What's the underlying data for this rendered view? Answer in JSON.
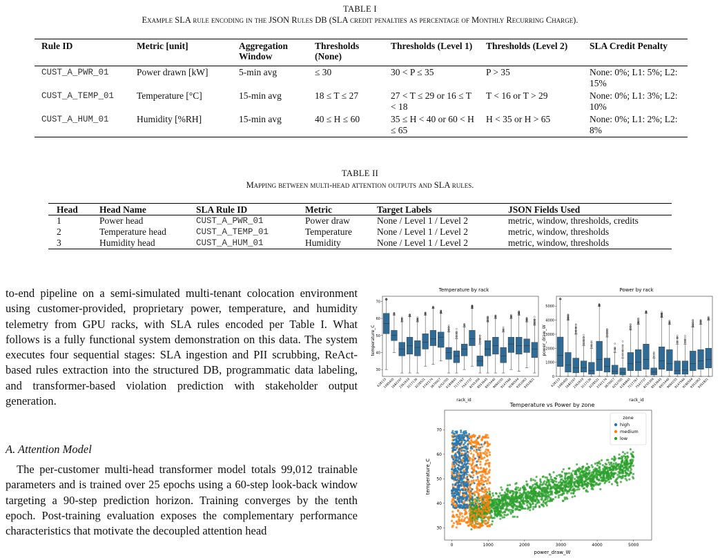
{
  "table1": {
    "label": "TABLE I",
    "caption": "Example SLA rule encoding in the JSON Rules DB (SLA credit penalties as percentage of Monthly Recurring Charge).",
    "headers": [
      "Rule ID",
      "Metric [unit]",
      "Aggregation Window",
      "Thresholds (None)",
      "Thresholds (Level 1)",
      "Thresholds (Level 2)",
      "SLA Credit Penalty"
    ],
    "rows": [
      {
        "id": "CUST_A_PWR_01",
        "metric": "Power drawn [kW]",
        "window": "5-min avg",
        "none": "≤ 30",
        "l1": "30 < P ≤ 35",
        "l2": "P > 35",
        "penalty": "None: 0%; L1: 5%; L2: 15%"
      },
      {
        "id": "CUST_A_TEMP_01",
        "metric": "Temperature [°C]",
        "window": "15-min avg",
        "none": "18 ≤ T ≤ 27",
        "l1": "27 < T ≤ 29 or 16 ≤ T < 18",
        "l2": "T < 16 or T > 29",
        "penalty": "None: 0%; L1: 3%; L2: 10%"
      },
      {
        "id": "CUST_A_HUM_01",
        "metric": "Humidity [%RH]",
        "window": "15-min avg",
        "none": "40 ≤ H ≤ 60",
        "l1": "35 ≤ H < 40 or 60 < H ≤ 65",
        "l2": "H < 35 or H > 65",
        "penalty": "None: 0%; L1: 2%; L2: 8%"
      }
    ]
  },
  "table2": {
    "label": "TABLE II",
    "caption": "Mapping between multi-head attention outputs and SLA rules.",
    "headers": [
      "Head",
      "Head Name",
      "SLA Rule ID",
      "Metric",
      "Target Labels",
      "JSON Fields Used"
    ],
    "rows": [
      {
        "head": "1",
        "name": "Power head",
        "rule": "CUST_A_PWR_01",
        "metric": "Power draw",
        "labels": "None / Level 1 / Level 2",
        "fields": "metric, window, thresholds, credits"
      },
      {
        "head": "2",
        "name": "Temperature head",
        "rule": "CUST_A_TEMP_01",
        "metric": "Temperature",
        "labels": "None / Level 1 / Level 2",
        "fields": "metric, window, thresholds"
      },
      {
        "head": "3",
        "name": "Humidity head",
        "rule": "CUST_A_HUM_01",
        "metric": "Humidity",
        "labels": "None / Level 1 / Level 2",
        "fields": "metric, window, thresholds"
      }
    ]
  },
  "paragraph1": "to-end pipeline on a semi-simulated multi-tenant colocation environment using customer-provided, proprietary power, temperature, and humidity telemetry from GPU racks, with SLA rules encoded per Table I. What follows is a fully functional system demonstration on this data. The system executes four sequential stages: SLA ingestion and PII scrubbing, ReAct-based rules extraction into the structured DB, programmatic data labeling, and transformer-based violation prediction with stakeholder output generation.",
  "section_title": "A. Attention Model",
  "paragraph2": "The per-customer multi-head transformer model totals 99,012 trainable parameters and is trained over 25 epochs using a 60-step look-back window targeting a 90-step prediction horizon. Training converges by the tenth epoch. Post-training evaluation exposes the complementary performance characteristics that motivate the decoupled attention head",
  "figures": {
    "temp_box": {
      "title": "Temperature by rack",
      "xlabel": "rack_id",
      "ylabel": "temperature_C",
      "yticks": [
        "30",
        "40",
        "50",
        "60",
        "70"
      ],
      "xcats": [
        "628115",
        "1485405",
        "1682297",
        "2362619",
        "3117136",
        "3228521",
        "3742174",
        "3879927",
        "4252705",
        "6189845",
        "7117767",
        "7547737",
        "8255356",
        "8553645",
        "8915440",
        "9060155",
        "9147566",
        "9180594",
        "9351063",
        "9352821"
      ]
    },
    "power_box": {
      "title": "Power by rack",
      "xlabel": "rack_id",
      "ylabel": "power_draw_W",
      "yticks": [
        "0",
        "1000",
        "2000",
        "3000",
        "4000",
        "5000"
      ]
    },
    "scatter": {
      "title": "Temperature vs Power by zone",
      "xlabel": "power_draw_W",
      "ylabel": "temperature_C",
      "xticks": [
        "0",
        "1000",
        "2000",
        "3000",
        "4000",
        "5000"
      ],
      "yticks": [
        "30",
        "40",
        "50",
        "60",
        "70"
      ],
      "legend_title": "zone",
      "legend": [
        {
          "name": "high",
          "color": "#1f77b4"
        },
        {
          "name": "medium",
          "color": "#ff7f0e"
        },
        {
          "name": "low",
          "color": "#2ca02c"
        }
      ]
    }
  },
  "chart_data": [
    {
      "type": "box",
      "title": "Temperature by rack",
      "xlabel": "rack_id",
      "ylabel": "temperature_C",
      "categories": [
        "628115",
        "1485405",
        "1682297",
        "2362619",
        "3117136",
        "3228521",
        "3742174",
        "3879927",
        "4252705",
        "6189845",
        "7117767",
        "7547737",
        "8255356",
        "8553645",
        "8915440",
        "9060155",
        "9147566",
        "9180594",
        "9351063",
        "9352821"
      ],
      "boxes": [
        {
          "q1": 51,
          "median": 57,
          "q3": 63,
          "wlo": 30,
          "whi": 71
        },
        {
          "q1": 47,
          "median": 50,
          "q3": 53,
          "wlo": 40,
          "whi": 62
        },
        {
          "q1": 38,
          "median": 42,
          "q3": 46,
          "wlo": 28,
          "whi": 58
        },
        {
          "q1": 39,
          "median": 44,
          "q3": 49,
          "wlo": 28,
          "whi": 61
        },
        {
          "q1": 38,
          "median": 43,
          "q3": 47,
          "wlo": 28,
          "whi": 58
        },
        {
          "q1": 42,
          "median": 46,
          "q3": 51,
          "wlo": 32,
          "whi": 62
        },
        {
          "q1": 44,
          "median": 48,
          "q3": 53,
          "wlo": 33,
          "whi": 66
        },
        {
          "q1": 43,
          "median": 49,
          "q3": 52,
          "wlo": 35,
          "whi": 63
        },
        {
          "q1": 36,
          "median": 40,
          "q3": 43,
          "wlo": 28,
          "whi": 52
        },
        {
          "q1": 34,
          "median": 38,
          "q3": 41,
          "wlo": 28,
          "whi": 48
        },
        {
          "q1": 38,
          "median": 42,
          "q3": 45,
          "wlo": 30,
          "whi": 55
        },
        {
          "q1": 44,
          "median": 48,
          "q3": 53,
          "wlo": 32,
          "whi": 66
        },
        {
          "q1": 32,
          "median": 35,
          "q3": 38,
          "wlo": 28,
          "whi": 45
        },
        {
          "q1": 38,
          "median": 42,
          "q3": 47,
          "wlo": 28,
          "whi": 58
        },
        {
          "q1": 39,
          "median": 44,
          "q3": 49,
          "wlo": 28,
          "whi": 60
        },
        {
          "q1": 34,
          "median": 38,
          "q3": 43,
          "wlo": 28,
          "whi": 52
        },
        {
          "q1": 40,
          "median": 45,
          "q3": 49,
          "wlo": 30,
          "whi": 60
        },
        {
          "q1": 39,
          "median": 44,
          "q3": 49,
          "wlo": 29,
          "whi": 62
        },
        {
          "q1": 40,
          "median": 44,
          "q3": 48,
          "wlo": 31,
          "whi": 58
        },
        {
          "q1": 37,
          "median": 42,
          "q3": 46,
          "wlo": 28,
          "whi": 56
        }
      ],
      "ylim": [
        26,
        73
      ]
    },
    {
      "type": "box",
      "title": "Power by rack",
      "xlabel": "rack_id",
      "ylabel": "power_draw_W",
      "categories": [
        "628115",
        "1485405",
        "1682297",
        "2362619",
        "3117136",
        "3228521",
        "3742174",
        "3879927",
        "4252705",
        "6189845",
        "7117767",
        "7547737",
        "8255356",
        "8553645",
        "8915440",
        "9060155",
        "9147566",
        "9180594",
        "9351063",
        "9352821"
      ],
      "boxes": [
        {
          "q1": 700,
          "median": 1500,
          "q3": 2800,
          "wlo": 0,
          "whi": 5500
        },
        {
          "q1": 300,
          "median": 800,
          "q3": 1700,
          "wlo": 0,
          "whi": 4000
        },
        {
          "q1": 250,
          "median": 600,
          "q3": 1300,
          "wlo": 0,
          "whi": 3000
        },
        {
          "q1": 300,
          "median": 600,
          "q3": 1100,
          "wlo": 0,
          "whi": 2200
        },
        {
          "q1": 150,
          "median": 400,
          "q3": 1000,
          "wlo": 0,
          "whi": 2000
        },
        {
          "q1": 400,
          "median": 1200,
          "q3": 2500,
          "wlo": 0,
          "whi": 5000
        },
        {
          "q1": 300,
          "median": 700,
          "q3": 1300,
          "wlo": 0,
          "whi": 2800
        },
        {
          "q1": 150,
          "median": 350,
          "q3": 800,
          "wlo": 0,
          "whi": 1700
        },
        {
          "q1": 100,
          "median": 250,
          "q3": 600,
          "wlo": 0,
          "whi": 1300
        },
        {
          "q1": 400,
          "median": 900,
          "q3": 1700,
          "wlo": 0,
          "whi": 3300
        },
        {
          "q1": 400,
          "median": 1000,
          "q3": 1900,
          "wlo": 0,
          "whi": 3700
        },
        {
          "q1": 500,
          "median": 1200,
          "q3": 2300,
          "wlo": 0,
          "whi": 4500
        },
        {
          "q1": 100,
          "median": 300,
          "q3": 600,
          "wlo": 0,
          "whi": 1300
        },
        {
          "q1": 500,
          "median": 1100,
          "q3": 2100,
          "wlo": 0,
          "whi": 4200
        },
        {
          "q1": 400,
          "median": 900,
          "q3": 1900,
          "wlo": 0,
          "whi": 3700
        },
        {
          "q1": 150,
          "median": 400,
          "q3": 1100,
          "wlo": 0,
          "whi": 2300
        },
        {
          "q1": 150,
          "median": 450,
          "q3": 1100,
          "wlo": 0,
          "whi": 2300
        },
        {
          "q1": 400,
          "median": 900,
          "q3": 1800,
          "wlo": 0,
          "whi": 3500
        },
        {
          "q1": 500,
          "median": 1100,
          "q3": 1900,
          "wlo": 0,
          "whi": 3700
        },
        {
          "q1": 600,
          "median": 1200,
          "q3": 2000,
          "wlo": 0,
          "whi": 4000
        }
      ],
      "ylim": [
        0,
        5700
      ]
    },
    {
      "type": "scatter",
      "title": "Temperature vs Power by zone",
      "xlabel": "power_draw_W",
      "ylabel": "temperature_C",
      "xlim": [
        -200,
        5500
      ],
      "ylim": [
        25,
        78
      ],
      "series": [
        {
          "name": "high",
          "x_range": [
            0,
            1000
          ],
          "y_range": [
            36,
            70
          ]
        },
        {
          "name": "medium",
          "x_range": [
            0,
            1100
          ],
          "y_range": [
            28,
            68
          ]
        },
        {
          "name": "low",
          "x_range": [
            500,
            5200
          ],
          "y_range": [
            28,
            63
          ]
        }
      ],
      "legend_position": "top-right"
    }
  ]
}
